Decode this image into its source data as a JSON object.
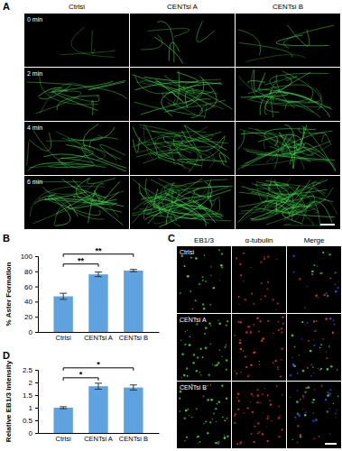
{
  "panels": {
    "labels": [
      "A",
      "B",
      "C",
      "D"
    ],
    "A": {
      "columns": [
        "Ctrlsi",
        "CENTsi A",
        "CENTsi B"
      ],
      "rows": [
        "0 min",
        "2 min",
        "4 min",
        "6 min"
      ]
    },
    "C": {
      "columns": [
        "EB1/3",
        "α-tubulin",
        "Merge"
      ],
      "rows": [
        "Ctrlsi",
        "CENTsi A",
        "CENTsi B"
      ]
    }
  },
  "chart_data": [
    {
      "type": "bar",
      "ylabel": "% Aster Formation",
      "categories": [
        "Ctrlsi",
        "CENTsi A",
        "CENTsi B"
      ],
      "values": [
        47,
        76,
        81
      ],
      "error": [
        4,
        3,
        1.5
      ],
      "color": "#5fa2e0",
      "ylim": [
        0,
        100
      ],
      "yticks": [
        0,
        20,
        40,
        60,
        80,
        100
      ],
      "annotations": [
        {
          "text": "**",
          "from": "Ctrlsi",
          "to": "CENTsi A"
        },
        {
          "text": "**",
          "from": "Ctrlsi",
          "to": "CENTsi B"
        }
      ]
    },
    {
      "type": "bar",
      "ylabel": "Relative EB1/3 Intensity",
      "categories": [
        "Ctrlsi",
        "CENTsi A",
        "CENTsi B"
      ],
      "values": [
        1.0,
        1.85,
        1.8
      ],
      "error": [
        0.04,
        0.12,
        0.1
      ],
      "color": "#5fa2e0",
      "ylim": [
        0,
        2.5
      ],
      "yticks": [
        0,
        0.5,
        1,
        1.5,
        2,
        2.5
      ],
      "annotations": [
        {
          "text": "*",
          "from": "Ctrlsi",
          "to": "CENTsi A"
        },
        {
          "text": "*",
          "from": "Ctrlsi",
          "to": "CENTsi B"
        }
      ]
    }
  ]
}
